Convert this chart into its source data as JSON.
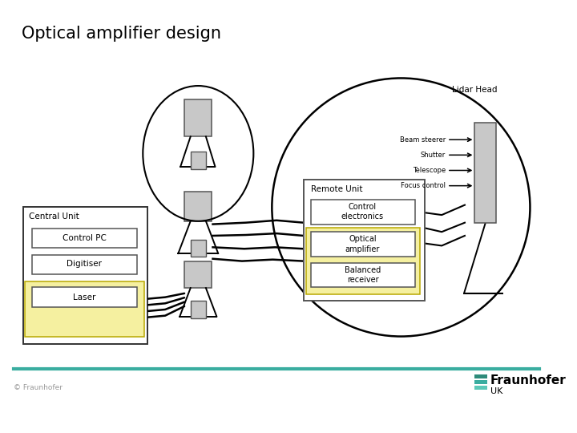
{
  "title": "Optical amplifier design",
  "title_fontsize": 15,
  "title_fontweight": "normal",
  "bg_color": "#ffffff",
  "teal_line_color": "#3aada0",
  "copyright_text": "© Fraunhofer",
  "fraunhofer_text": "Fraunhofer",
  "uk_text": "UK",
  "yellow_fill": "#f5f0a0",
  "light_gray": "#c8c8c8",
  "box_ec": "#555555",
  "black": "#1a1a1a",
  "teal_logo": "#2e8b7a",
  "teal_logo2": "#3aada0",
  "teal_logo3": "#5cc8b8"
}
